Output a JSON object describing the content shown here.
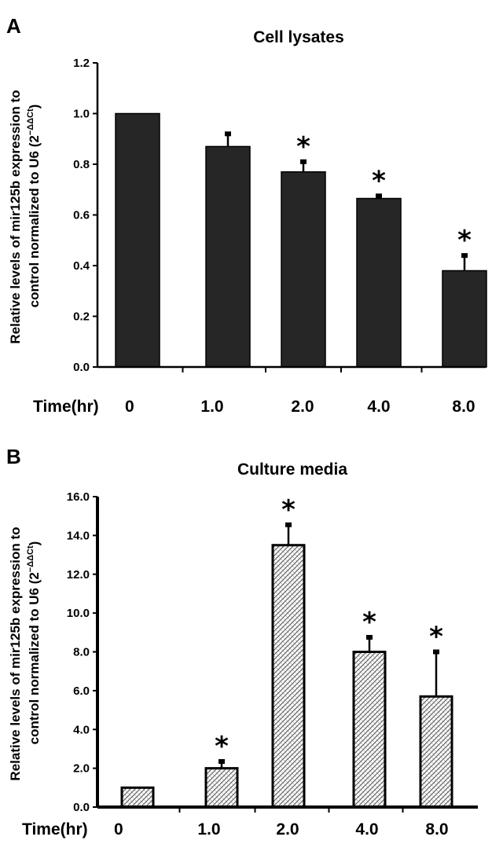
{
  "colors": {
    "bar_fill_a": "#262626",
    "hatch": "#555555",
    "axis": "#000000"
  },
  "chart_data": [
    {
      "panel": "A",
      "type": "bar",
      "title": "Cell lysates",
      "xlabel": "Time(hr)",
      "ylabel_line1": "Relative levels of mir125b expression to",
      "ylabel_line2": "control normalized to U6 (2",
      "ylabel_sup": "−ΔΔCt",
      "ylabel_close": ")",
      "categories": [
        "0",
        "1.0",
        "2.0",
        "4.0",
        "8.0"
      ],
      "values": [
        1.0,
        0.87,
        0.77,
        0.665,
        0.38
      ],
      "errors": [
        0.0,
        0.05,
        0.04,
        0.01,
        0.06
      ],
      "significant": [
        false,
        false,
        true,
        true,
        true
      ],
      "ylim": [
        0,
        1.2
      ],
      "yticks": [
        "0.0",
        "0.2",
        "0.4",
        "0.6",
        "0.8",
        "1.0",
        "1.2"
      ],
      "fill": "solid-dark"
    },
    {
      "panel": "B",
      "type": "bar",
      "title": "Culture media",
      "xlabel": "Time(hr)",
      "ylabel_line1": "Relative levels of mir125b expression to",
      "ylabel_line2": "control normalized to U6 (2",
      "ylabel_sup": "−ΔΔCt",
      "ylabel_close": ")",
      "categories": [
        "0",
        "1.0",
        "2.0",
        "4.0",
        "8.0"
      ],
      "values": [
        1.0,
        2.0,
        13.5,
        8.0,
        5.7
      ],
      "errors": [
        0.0,
        0.35,
        1.05,
        0.75,
        2.3
      ],
      "significant": [
        false,
        true,
        true,
        true,
        true
      ],
      "ylim": [
        0,
        16
      ],
      "yticks": [
        "0.0",
        "2.0",
        "4.0",
        "6.0",
        "8.0",
        "10.0",
        "12.0",
        "14.0",
        "16.0"
      ],
      "fill": "hatched"
    }
  ]
}
